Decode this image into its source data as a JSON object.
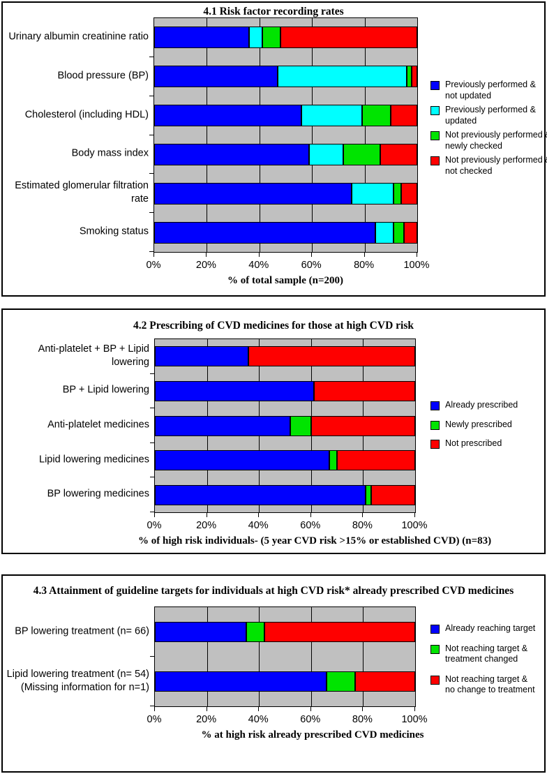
{
  "page": {
    "background": "#ffffff",
    "plot_background": "#c0c0c0",
    "axis_color": "#000000"
  },
  "chart_data": [
    {
      "type": "bar",
      "orientation": "horizontal-stacked-100",
      "title": "4.1 Risk factor recording rates",
      "xlabel": "% of total sample (n=200)",
      "x_ticks": [
        "0%",
        "20%",
        "40%",
        "60%",
        "80%",
        "100%"
      ],
      "xlim": [
        0,
        100
      ],
      "grid": "vertical, every 20%",
      "legend_position": "right",
      "categories": [
        "Urinary albumin creatinine ratio",
        "Blood pressure (BP)",
        "Cholesterol (including HDL)",
        "Body mass index",
        "Estimated glomerular filtration rate",
        "Smoking status"
      ],
      "series": [
        {
          "name": "Previously performed &\nnot updated",
          "color": "#0000fe",
          "values": [
            36,
            47,
            56,
            59,
            75,
            84
          ]
        },
        {
          "name": "Previously performed &\nupdated",
          "color": "#00ffff",
          "values": [
            5,
            49,
            23,
            13,
            16,
            7
          ]
        },
        {
          "name": "Not previously performed &\nnewly checked",
          "color": "#00e400",
          "values": [
            7,
            2,
            11,
            14,
            3,
            4
          ]
        },
        {
          "name": "Not previously performed &\nnot checked",
          "color": "#fe0000",
          "values": [
            52,
            2,
            10,
            14,
            6,
            5
          ]
        }
      ]
    },
    {
      "type": "bar",
      "orientation": "horizontal-stacked-100",
      "title": "4.2 Prescribing of CVD medicines for those at high CVD risk",
      "xlabel": "% of high risk individuals- (5 year CVD risk >15% or established CVD) (n=83)",
      "x_ticks": [
        "0%",
        "20%",
        "40%",
        "60%",
        "80%",
        "100%"
      ],
      "xlim": [
        0,
        100
      ],
      "grid": "vertical, every 20%",
      "legend_position": "right",
      "categories": [
        "Anti-platelet + BP + Lipid lowering",
        "BP + Lipid lowering",
        "Anti-platelet medicines",
        "Lipid lowering medicines",
        "BP lowering medicines"
      ],
      "series": [
        {
          "name": "Already prescribed",
          "color": "#0000fe",
          "values": [
            36,
            61,
            52,
            67,
            81
          ]
        },
        {
          "name": "Newly prescribed",
          "color": "#00e400",
          "values": [
            0,
            0,
            8,
            3,
            2
          ]
        },
        {
          "name": "Not prescribed",
          "color": "#fe0000",
          "values": [
            64,
            39,
            40,
            30,
            17
          ]
        }
      ]
    },
    {
      "type": "bar",
      "orientation": "horizontal-stacked-100",
      "title": "4.3 Attainment of guideline targets for individuals at high CVD risk* already prescribed CVD medicines",
      "xlabel": "% at high risk already prescribed CVD medicines",
      "x_ticks": [
        "0%",
        "20%",
        "40%",
        "60%",
        "80%",
        "100%"
      ],
      "xlim": [
        0,
        100
      ],
      "grid": "vertical, every 20%",
      "legend_position": "right",
      "categories": [
        "BP lowering treatment (n= 66)",
        "Lipid lowering treatment (n= 54)\n(Missing information for n=1)"
      ],
      "series": [
        {
          "name": "Already reaching target",
          "color": "#0000fe",
          "values": [
            35,
            66
          ]
        },
        {
          "name": "Not reaching target &\ntreatment changed",
          "color": "#00e400",
          "values": [
            7,
            11
          ]
        },
        {
          "name": "Not reaching target &\nno change to treatment",
          "color": "#fe0000",
          "values": [
            58,
            23
          ]
        }
      ]
    }
  ]
}
